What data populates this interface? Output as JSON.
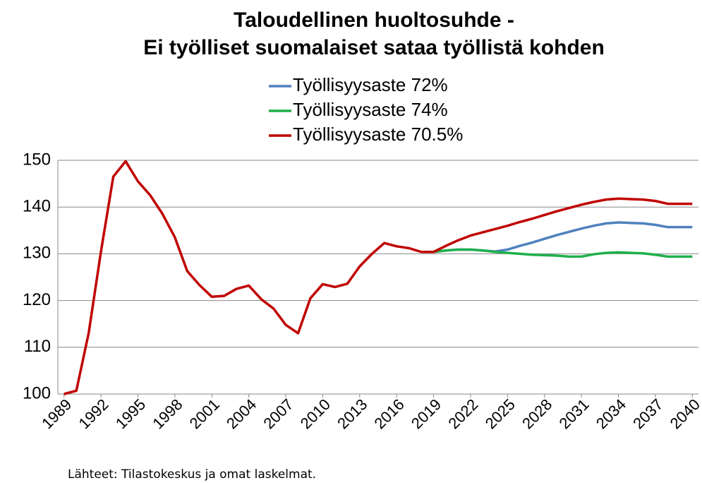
{
  "chart_data": {
    "type": "line",
    "title": [
      "Taloudellinen huoltosuhde -",
      "Ei työlliset suomalaiset sataa työllistä kohden"
    ],
    "x": [
      1989,
      1990,
      1991,
      1992,
      1993,
      1994,
      1995,
      1996,
      1997,
      1998,
      1999,
      2000,
      2001,
      2002,
      2003,
      2004,
      2005,
      2006,
      2007,
      2008,
      2009,
      2010,
      2011,
      2012,
      2013,
      2014,
      2015,
      2016,
      2017,
      2018,
      2019,
      2020,
      2021,
      2022,
      2023,
      2024,
      2025,
      2026,
      2027,
      2028,
      2029,
      2030,
      2031,
      2032,
      2033,
      2034,
      2035,
      2036,
      2037,
      2038,
      2039,
      2040
    ],
    "series": [
      {
        "name": "Työllisyysaste 72%",
        "color": "#4f81bd",
        "values": [
          null,
          null,
          null,
          null,
          null,
          null,
          null,
          null,
          null,
          null,
          null,
          null,
          null,
          null,
          null,
          null,
          null,
          null,
          null,
          null,
          null,
          null,
          null,
          null,
          null,
          null,
          null,
          null,
          null,
          null,
          130.4,
          130.7,
          130.9,
          130.9,
          130.7,
          130.5,
          130.9,
          131.7,
          132.4,
          133.2,
          134,
          134.7,
          135.4,
          136,
          136.5,
          136.7,
          136.6,
          136.5,
          136.2,
          135.7,
          135.7,
          135.7
        ]
      },
      {
        "name": "Työllisyysaste 74%",
        "color": "#1fb04a",
        "values": [
          null,
          null,
          null,
          null,
          null,
          null,
          null,
          null,
          null,
          null,
          null,
          null,
          null,
          null,
          null,
          null,
          null,
          null,
          null,
          null,
          null,
          null,
          null,
          null,
          null,
          null,
          null,
          null,
          null,
          null,
          130.4,
          130.7,
          130.9,
          130.9,
          130.7,
          130.4,
          130.2,
          130,
          129.8,
          129.7,
          129.6,
          129.4,
          129.4,
          129.9,
          130.2,
          130.3,
          130.2,
          130.1,
          129.8,
          129.4,
          129.4,
          129.4
        ]
      },
      {
        "name": "Työllisyysaste 70.5%",
        "color": "#c00000",
        "values": [
          100,
          100.7,
          113,
          130.5,
          146.5,
          149.8,
          145.5,
          142.5,
          138.5,
          133.5,
          126.3,
          123.3,
          120.8,
          121,
          122.5,
          123.2,
          120.3,
          118.3,
          114.8,
          113,
          120.5,
          123.5,
          122.9,
          123.6,
          127.3,
          130,
          132.3,
          131.6,
          131.2,
          130.4,
          130.4,
          131.7,
          132.9,
          133.9,
          134.6,
          135.3,
          136,
          136.8,
          137.5,
          138.3,
          139.1,
          139.8,
          140.5,
          141.1,
          141.6,
          141.8,
          141.7,
          141.6,
          141.3,
          140.7,
          140.7,
          140.7
        ]
      }
    ],
    "xlim": [
      1988.5,
      2040.5
    ],
    "xticks": [
      1989,
      1992,
      1995,
      1998,
      2001,
      2004,
      2007,
      2010,
      2013,
      2016,
      2019,
      2022,
      2025,
      2028,
      2031,
      2034,
      2037,
      2040
    ],
    "ylim": [
      100,
      150
    ],
    "yticks": [
      100,
      110,
      120,
      130,
      140,
      150
    ],
    "grid": true,
    "legend": "top",
    "source": "Lähteet: Tilastokeskus ja omat laskelmat."
  }
}
